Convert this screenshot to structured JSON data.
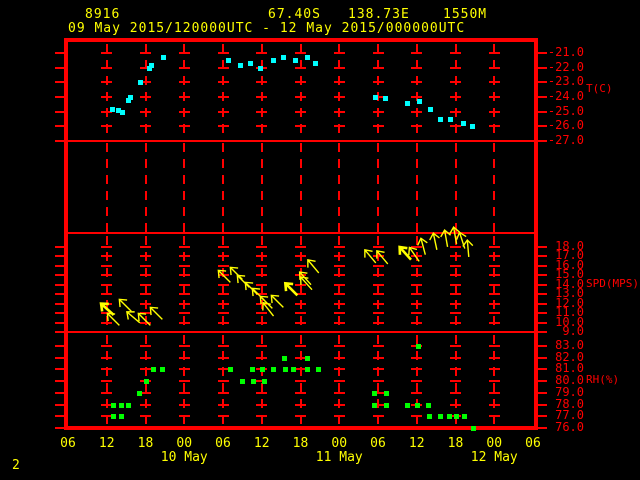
{
  "header": {
    "station_id": "8916",
    "latitude": "67.40S",
    "longitude": "138.73E",
    "elevation": "1550M",
    "period": "09 May 2015/120000UTC - 12 May 2015/000000UTC"
  },
  "page_number": "2",
  "colors": {
    "background": "#000000",
    "grid": "#ff0000",
    "text_accent": "#ffff00",
    "temperature": "#00ffff",
    "wind": "#ffff00",
    "humidity": "#00ff00"
  },
  "x_axis": {
    "hour_labels": [
      "06",
      "12",
      "18",
      "00",
      "06",
      "12",
      "18",
      "00",
      "06",
      "12",
      "18",
      "00",
      "06"
    ],
    "hours": [
      6,
      12,
      18,
      24,
      30,
      36,
      42,
      48,
      54,
      60,
      66,
      72,
      78
    ],
    "date_labels": [
      {
        "label": "10 May",
        "hour": 24
      },
      {
        "label": "11 May",
        "hour": 48
      },
      {
        "label": "12 May",
        "hour": 72
      }
    ]
  },
  "chart_data": [
    {
      "type": "scatter",
      "name": "temperature",
      "ylabel": "T(C)",
      "ylim": [
        -21,
        -27
      ],
      "yticks": [
        -21,
        -22,
        -23,
        -24,
        -25,
        -26,
        -27
      ],
      "xlim": [
        6,
        78
      ],
      "x_unit": "hours UTC from 09 May 2015 00UTC",
      "points": [
        [
          12.8,
          -24.8
        ],
        [
          13.7,
          -24.9
        ],
        [
          14.4,
          -25.0
        ],
        [
          15.3,
          -24.2
        ],
        [
          15.6,
          -24.0
        ],
        [
          17.1,
          -23.0
        ],
        [
          18.5,
          -22.0
        ],
        [
          18.9,
          -21.8
        ],
        [
          20.7,
          -21.3
        ],
        [
          30.8,
          -21.5
        ],
        [
          32.6,
          -21.8
        ],
        [
          34.2,
          -21.7
        ],
        [
          35.7,
          -22.0
        ],
        [
          37.7,
          -21.5
        ],
        [
          39.3,
          -21.3
        ],
        [
          41.2,
          -21.5
        ],
        [
          43.0,
          -21.3
        ],
        [
          44.2,
          -21.7
        ],
        [
          53.5,
          -24.0
        ],
        [
          55.1,
          -24.1
        ],
        [
          58.5,
          -24.4
        ],
        [
          60.4,
          -24.3
        ],
        [
          62.1,
          -24.8
        ],
        [
          63.6,
          -25.5
        ],
        [
          65.2,
          -25.5
        ],
        [
          67.2,
          -25.8
        ],
        [
          68.6,
          -26.0
        ]
      ]
    },
    {
      "type": "vector",
      "name": "wind-speed",
      "ylabel": "SPD(MPS)",
      "ylim": [
        18,
        9
      ],
      "yticks": [
        18,
        17,
        16,
        15,
        14,
        13,
        12,
        11,
        10,
        9
      ],
      "xlim": [
        6,
        78
      ],
      "x_unit": "hours UTC from 09 May 2015 00UTC",
      "arrows": [
        {
          "t": 12.0,
          "spd": 11.4,
          "deg": -48,
          "bold": true
        },
        {
          "t": 13.0,
          "spd": 10.4,
          "deg": -45
        },
        {
          "t": 14.8,
          "spd": 11.9,
          "deg": -45
        },
        {
          "t": 16.1,
          "spd": 10.6,
          "deg": -50
        },
        {
          "t": 17.8,
          "spd": 10.4,
          "deg": -45
        },
        {
          "t": 19.6,
          "spd": 11.0,
          "deg": -45
        },
        {
          "t": 30.2,
          "spd": 14.9,
          "deg": -45
        },
        {
          "t": 32.0,
          "spd": 15.3,
          "deg": -45
        },
        {
          "t": 33.1,
          "spd": 14.4,
          "deg": -45
        },
        {
          "t": 34.3,
          "spd": 13.7,
          "deg": -45
        },
        {
          "t": 35.4,
          "spd": 13.0,
          "deg": -45
        },
        {
          "t": 36.7,
          "spd": 12.2,
          "deg": -45
        },
        {
          "t": 37.0,
          "spd": 11.4,
          "deg": -38
        },
        {
          "t": 38.4,
          "spd": 12.3,
          "deg": -45
        },
        {
          "t": 40.5,
          "spd": 13.6,
          "deg": -45,
          "bold": true
        },
        {
          "t": 42.7,
          "spd": 14.7,
          "deg": -42
        },
        {
          "t": 42.9,
          "spd": 14.2,
          "deg": -42
        },
        {
          "t": 43.9,
          "spd": 16.0,
          "deg": -40
        },
        {
          "t": 52.8,
          "spd": 17.1,
          "deg": -40
        },
        {
          "t": 54.6,
          "spd": 16.9,
          "deg": -40
        },
        {
          "t": 58.2,
          "spd": 17.4,
          "deg": -42,
          "bold": true
        },
        {
          "t": 59.6,
          "spd": 17.3,
          "deg": -35
        },
        {
          "t": 61.0,
          "spd": 18.1,
          "deg": -15
        },
        {
          "t": 62.8,
          "spd": 18.6,
          "deg": -12
        },
        {
          "t": 64.5,
          "spd": 19.0,
          "deg": -10
        },
        {
          "t": 65.9,
          "spd": 19.3,
          "deg": -10
        },
        {
          "t": 67.0,
          "spd": 18.7,
          "deg": -18
        },
        {
          "t": 68.0,
          "spd": 17.9,
          "deg": -5
        }
      ]
    },
    {
      "type": "scatter",
      "name": "relative-humidity",
      "ylabel": "RH(%)",
      "ylim": [
        83,
        76
      ],
      "yticks": [
        83,
        82,
        81,
        80,
        79,
        78,
        77,
        76
      ],
      "xlim": [
        6,
        78
      ],
      "x_unit": "hours UTC from 09 May 2015 00UTC",
      "points": [
        [
          13.0,
          78
        ],
        [
          14.2,
          78
        ],
        [
          15.3,
          78
        ],
        [
          13.0,
          77
        ],
        [
          14.2,
          77
        ],
        [
          17.0,
          79
        ],
        [
          18.1,
          80
        ],
        [
          19.2,
          81
        ],
        [
          20.6,
          81
        ],
        [
          31.1,
          81
        ],
        [
          32.9,
          80
        ],
        [
          34.5,
          81
        ],
        [
          34.6,
          80
        ],
        [
          36.0,
          81
        ],
        [
          36.4,
          80
        ],
        [
          37.7,
          81
        ],
        [
          39.4,
          82
        ],
        [
          39.6,
          81
        ],
        [
          40.8,
          81
        ],
        [
          43.0,
          82
        ],
        [
          43.0,
          81
        ],
        [
          44.7,
          81
        ],
        [
          53.4,
          79
        ],
        [
          55.2,
          79
        ],
        [
          53.4,
          78
        ],
        [
          55.2,
          78
        ],
        [
          58.5,
          78
        ],
        [
          60.0,
          78
        ],
        [
          60.2,
          83
        ],
        [
          61.7,
          78
        ],
        [
          61.9,
          77
        ],
        [
          63.6,
          77
        ],
        [
          65.0,
          77
        ],
        [
          66.1,
          77
        ],
        [
          67.3,
          77
        ],
        [
          68.7,
          76
        ]
      ]
    }
  ]
}
